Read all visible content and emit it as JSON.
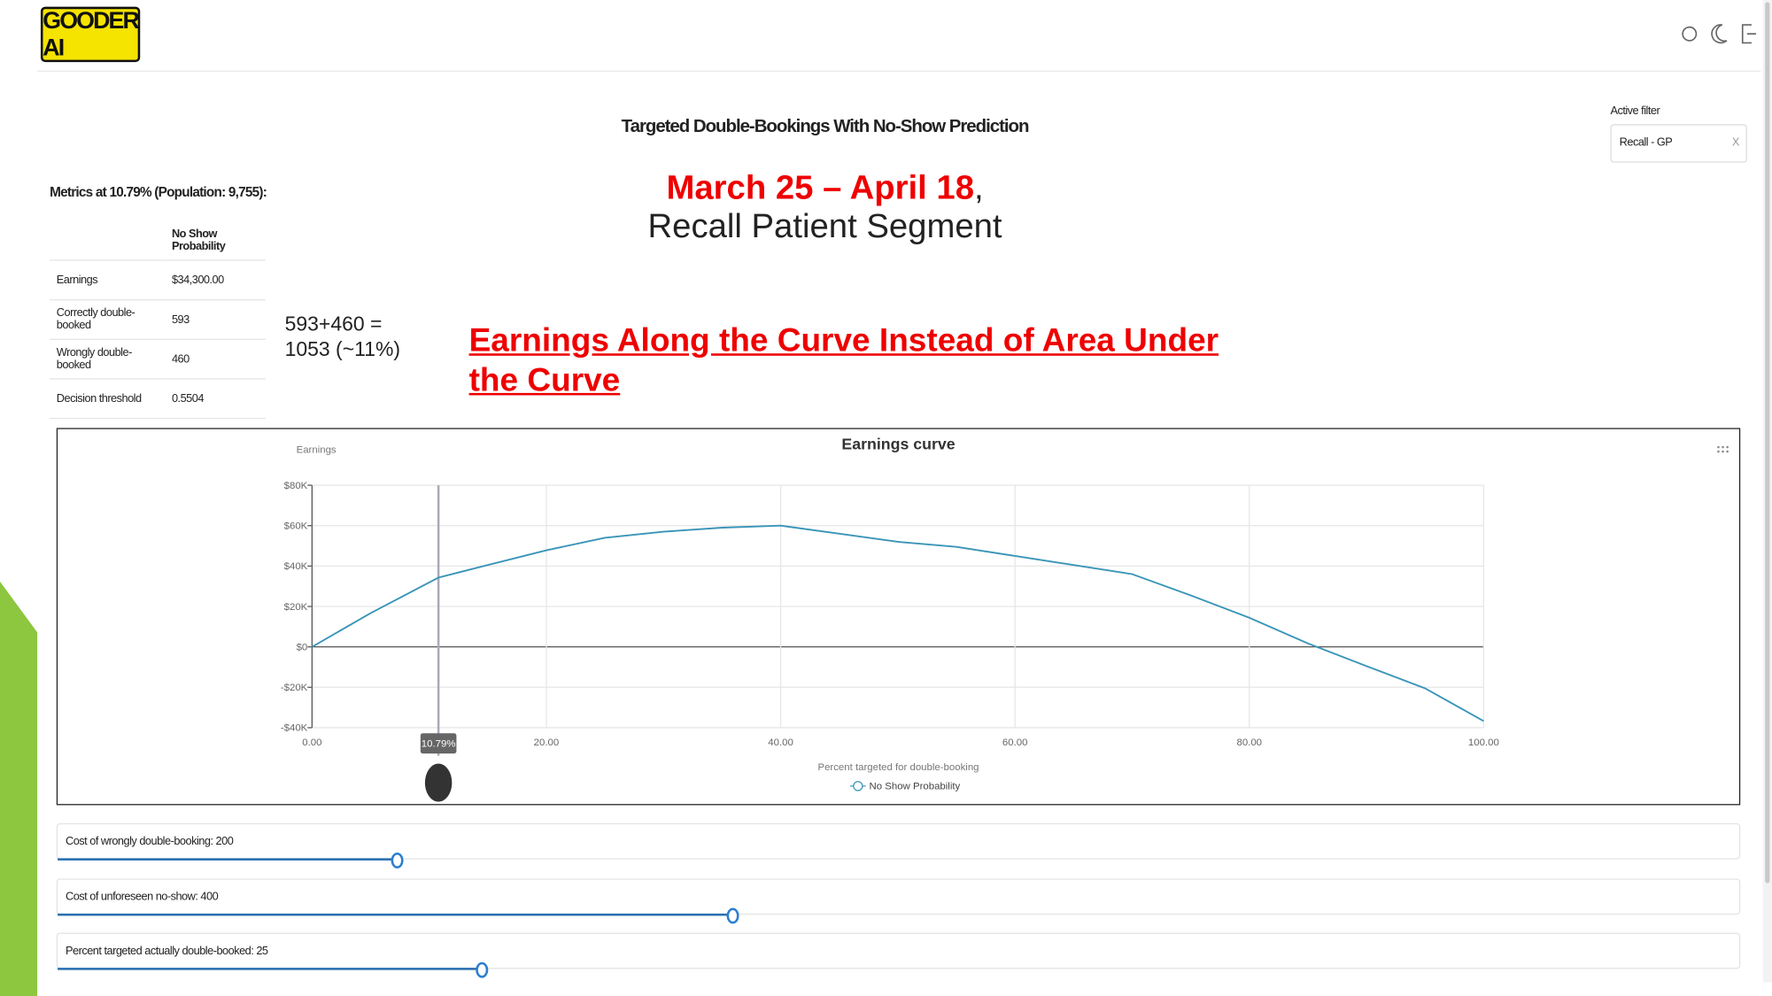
{
  "logo": "GOODER AI",
  "page_title": "Targeted Double-Bookings With No-Show Prediction",
  "filter": {
    "label": "Active filter",
    "value": "Recall - GP",
    "clear": "X"
  },
  "metrics": {
    "title": "Metrics at 10.79% (Population: 9,755):",
    "table": {
      "header": "No Show Probability",
      "rows": [
        [
          "Earnings",
          "$34,300.00"
        ],
        [
          "Correctly double-booked",
          "593"
        ],
        [
          "Wrongly double-booked",
          "460"
        ],
        [
          "Decision threshold",
          "0.5504"
        ]
      ]
    }
  },
  "slide": {
    "date_range": "March 25 – April 18",
    "comma": ",",
    "segment": "Recall Patient Segment",
    "note": [
      "593+460 =",
      "1053 (~11%)"
    ],
    "heading": [
      "Earnings Along the Curve Instead of Area Under",
      "the Curve"
    ]
  },
  "chart": {
    "type": "line",
    "title": "Earnings curve",
    "y_label": "Earnings",
    "x_label": "Percent targeted for double-booking",
    "x": [
      0,
      5,
      10.79,
      15,
      20,
      25,
      30,
      35,
      40,
      45,
      50,
      55,
      60,
      65,
      70,
      75,
      80,
      85,
      90,
      95,
      100
    ],
    "series": [
      {
        "name": "No Show Probability",
        "color": "#3a95b8",
        "values": [
          0,
          16700,
          34300,
          40500,
          47800,
          54000,
          57000,
          59000,
          60000,
          56000,
          52000,
          49500,
          45000,
          40500,
          36000,
          25500,
          14400,
          1700,
          -9500,
          -20500,
          -36700
        ]
      }
    ],
    "xlim": [
      0,
      100
    ],
    "ylim": [
      -40000,
      80000
    ],
    "xticks": [
      {
        "value": 0,
        "label": "0.00"
      },
      {
        "value": 20,
        "label": "20.00"
      },
      {
        "value": 40,
        "label": "40.00"
      },
      {
        "value": 60,
        "label": "60.00"
      },
      {
        "value": 80,
        "label": "80.00"
      },
      {
        "value": 100,
        "label": "100.00"
      }
    ],
    "yticks": [
      {
        "value": -40000,
        "label": "-$40K"
      },
      {
        "value": -20000,
        "label": "-$20K"
      },
      {
        "value": 0,
        "label": "$0"
      },
      {
        "value": 20000,
        "label": "$20K"
      },
      {
        "value": 40000,
        "label": "$40K"
      },
      {
        "value": 60000,
        "label": "$60K"
      },
      {
        "value": 80000,
        "label": "$80K"
      }
    ],
    "grid": true,
    "marker": {
      "x": 10.79,
      "label": "10.79%"
    }
  },
  "sliders": [
    "Cost of wrongly double-booking: 200",
    "Cost of unforeseen no-show: 400",
    "Percent targeted actually double-booked: 25"
  ]
}
